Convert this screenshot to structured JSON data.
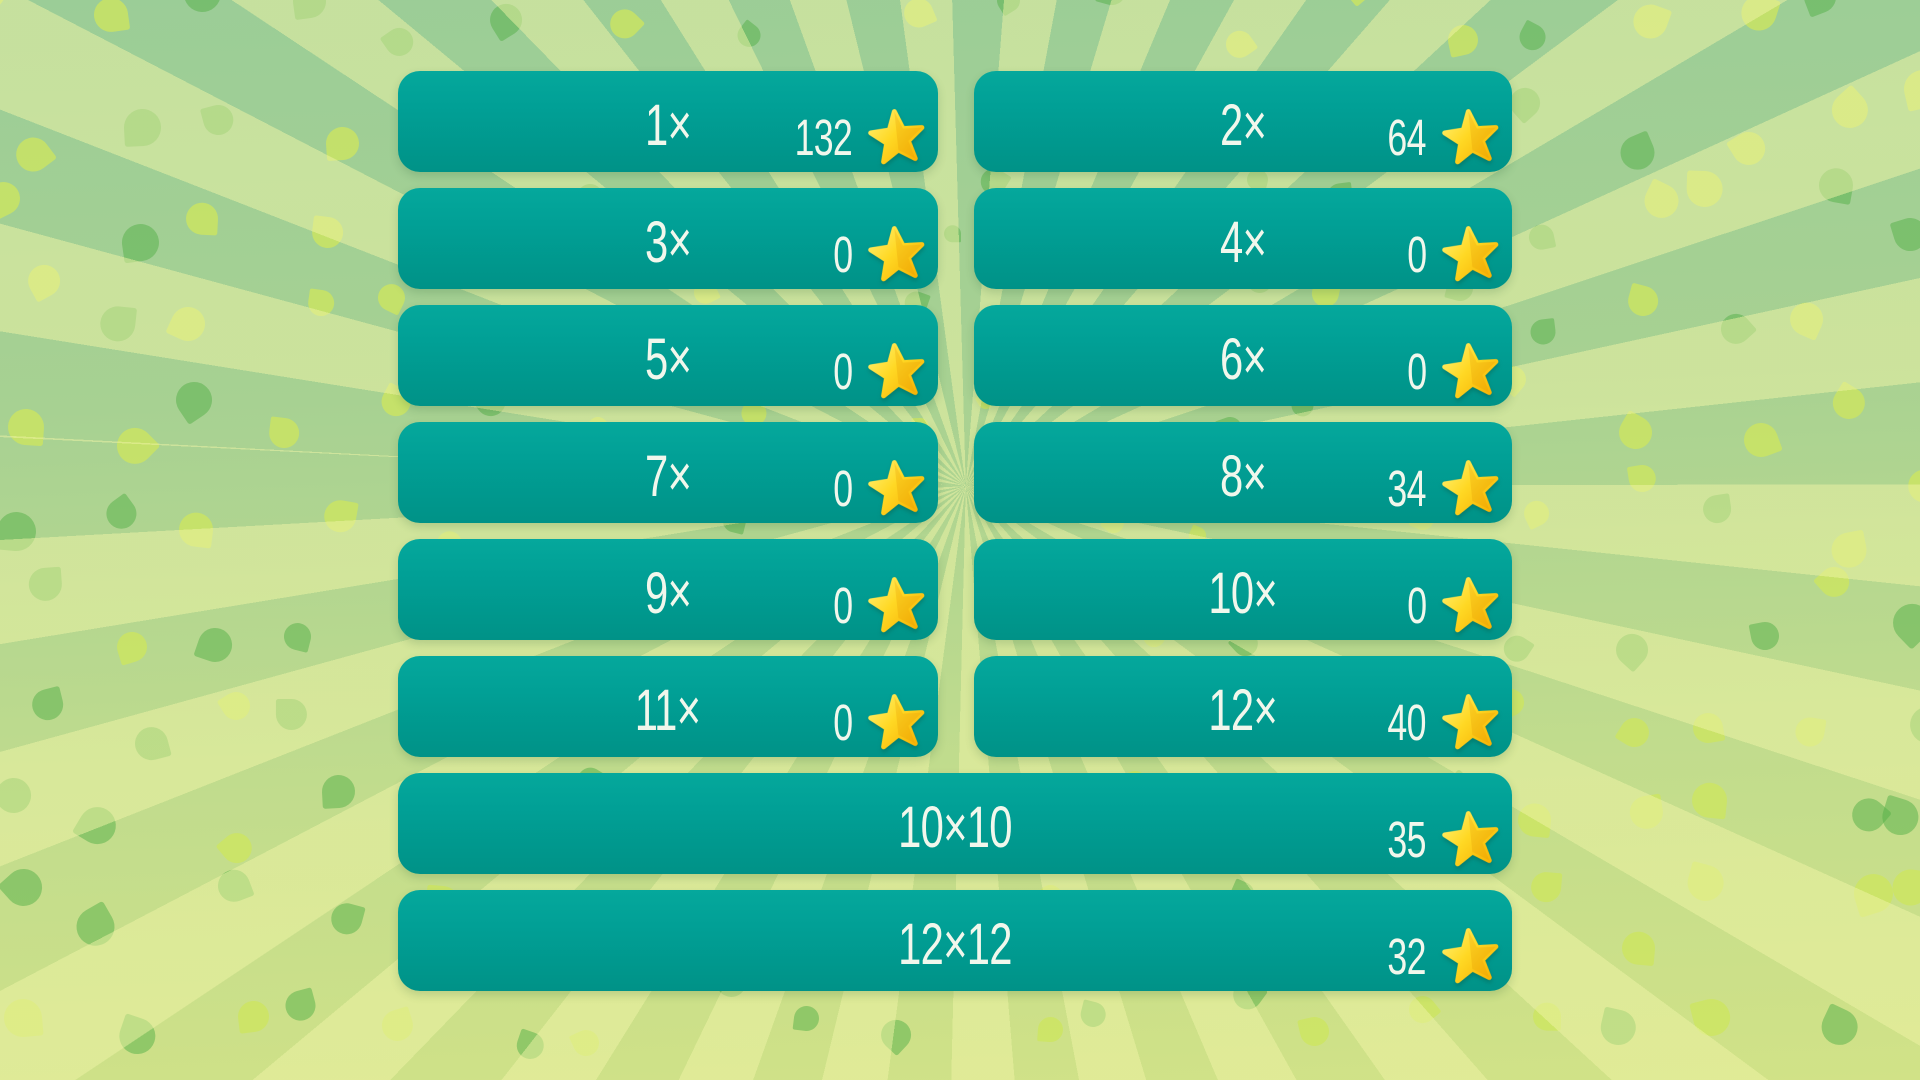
{
  "colors": {
    "button_teal": "#01a096",
    "button_text": "#f1f7ec",
    "star_light": "#fff173",
    "star_mid": "#ffd629",
    "star_dark": "#f6ae00",
    "bg_green_top": "#9bcd97",
    "bg_green_bottom": "#d1e287",
    "ray_tint": "#f0f4a6",
    "leaf_green": "rgba(84,176,72,0.50)",
    "leaf_lime": "rgba(205,230,95,0.78)"
  },
  "tables": [
    {
      "label": "1×",
      "stars": 132
    },
    {
      "label": "2×",
      "stars": 64
    },
    {
      "label": "3×",
      "stars": 0
    },
    {
      "label": "4×",
      "stars": 0
    },
    {
      "label": "5×",
      "stars": 0
    },
    {
      "label": "6×",
      "stars": 0
    },
    {
      "label": "7×",
      "stars": 0
    },
    {
      "label": "8×",
      "stars": 34
    },
    {
      "label": "9×",
      "stars": 0
    },
    {
      "label": "10×",
      "stars": 0
    },
    {
      "label": "11×",
      "stars": 0
    },
    {
      "label": "12×",
      "stars": 40
    }
  ],
  "challenges": [
    {
      "label": "10×10",
      "stars": 35
    },
    {
      "label": "12×12",
      "stars": 32
    }
  ]
}
